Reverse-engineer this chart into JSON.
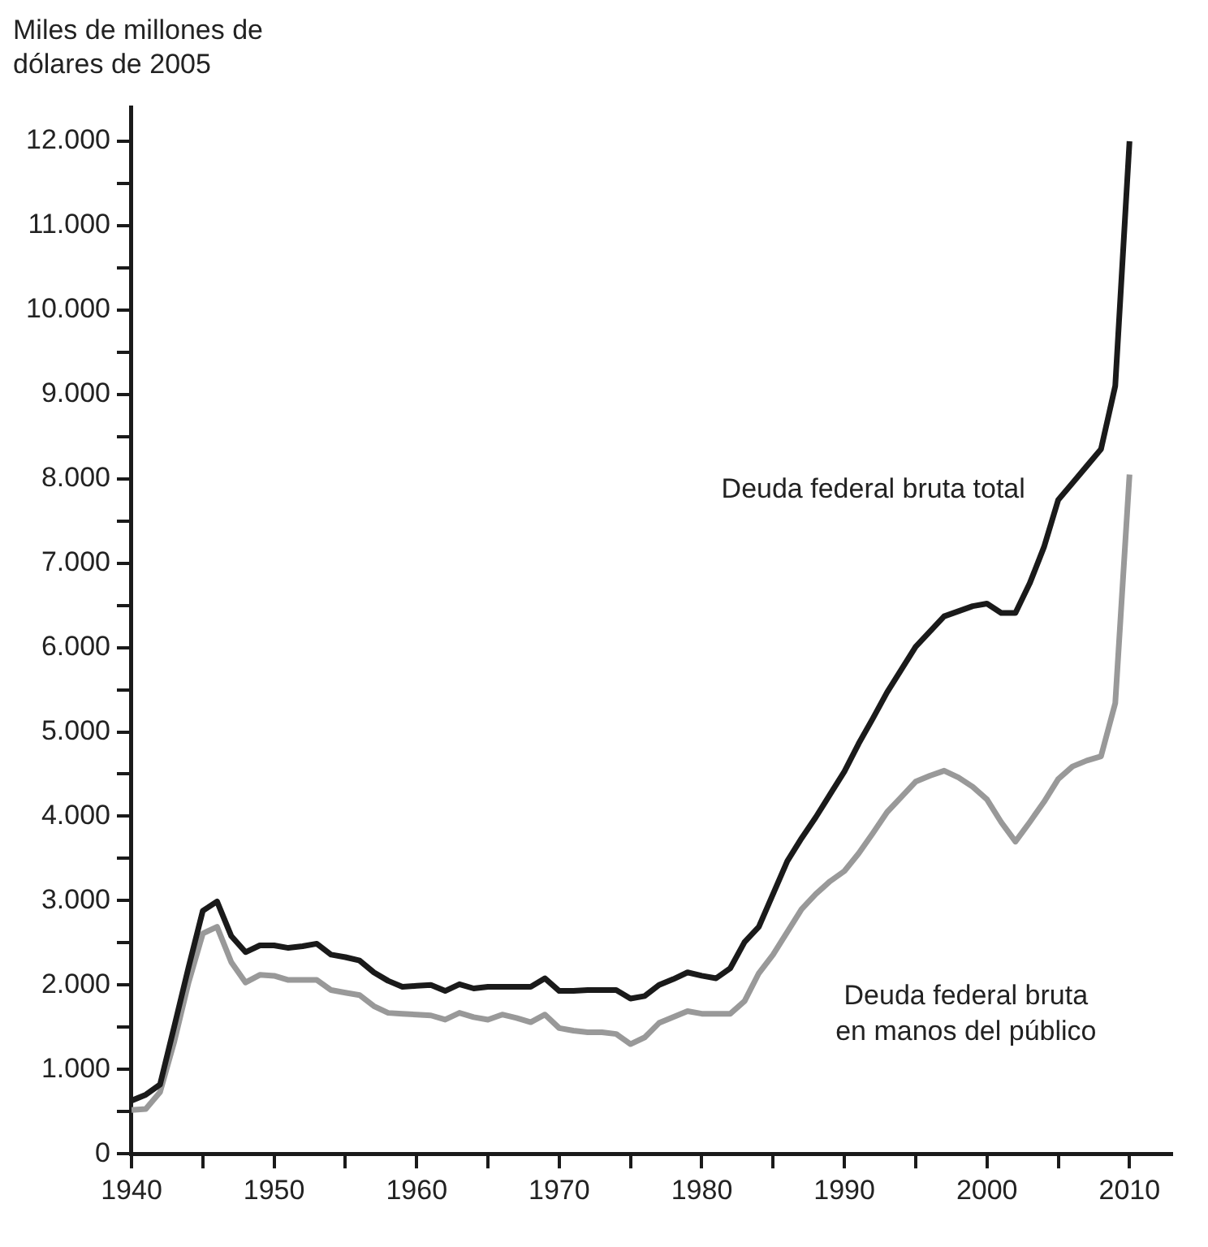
{
  "chart_data": {
    "type": "line",
    "ylabel": "Miles de millones de dólares de 2005",
    "x": [
      1940,
      1941,
      1942,
      1943,
      1944,
      1945,
      1946,
      1947,
      1948,
      1949,
      1950,
      1951,
      1952,
      1953,
      1954,
      1955,
      1956,
      1957,
      1958,
      1959,
      1960,
      1961,
      1962,
      1963,
      1964,
      1965,
      1966,
      1967,
      1968,
      1969,
      1970,
      1971,
      1972,
      1973,
      1974,
      1975,
      1976,
      1977,
      1978,
      1979,
      1980,
      1981,
      1982,
      1983,
      1984,
      1985,
      1986,
      1987,
      1988,
      1989,
      1990,
      1991,
      1992,
      1993,
      1994,
      1995,
      1996,
      1997,
      1998,
      1999,
      2000,
      2001,
      2002,
      2003,
      2004,
      2005,
      2006,
      2007,
      2008,
      2009,
      2010
    ],
    "series": [
      {
        "name": "Deuda federal bruta total",
        "color": "#1a1a1a",
        "values": [
          630,
          700,
          820,
          1510,
          2210,
          2880,
          2990,
          2580,
          2390,
          2470,
          2470,
          2440,
          2460,
          2490,
          2360,
          2330,
          2290,
          2150,
          2050,
          1980,
          1990,
          2000,
          1930,
          2010,
          1960,
          1980,
          1980,
          1980,
          1980,
          2080,
          1930,
          1930,
          1940,
          1940,
          1940,
          1840,
          1870,
          2000,
          2070,
          2150,
          2110,
          2080,
          2200,
          2510,
          2690,
          3080,
          3470,
          3740,
          3990,
          4260,
          4530,
          4860,
          5160,
          5470,
          5740,
          6010,
          6190,
          6370,
          6430,
          6490,
          6520,
          6410,
          6410,
          6760,
          7190,
          7750,
          7950,
          8150,
          8350,
          9100,
          12000
        ]
      },
      {
        "name": "Deuda federal bruta\nen manos del público",
        "color": "#999999",
        "values": [
          520,
          530,
          730,
          1330,
          2030,
          2610,
          2690,
          2270,
          2030,
          2120,
          2110,
          2060,
          2060,
          2060,
          1940,
          1910,
          1880,
          1750,
          1670,
          1660,
          1650,
          1640,
          1590,
          1670,
          1620,
          1590,
          1650,
          1610,
          1560,
          1650,
          1490,
          1460,
          1440,
          1440,
          1420,
          1300,
          1380,
          1550,
          1620,
          1690,
          1660,
          1660,
          1660,
          1810,
          2140,
          2360,
          2630,
          2900,
          3080,
          3230,
          3350,
          3560,
          3800,
          4050,
          4230,
          4410,
          4480,
          4540,
          4460,
          4350,
          4200,
          3930,
          3700,
          3930,
          4170,
          4440,
          4590,
          4660,
          4710,
          5340,
          8050
        ]
      }
    ],
    "xlim": [
      1940,
      2013
    ],
    "xticks": [
      1940,
      {
        "value": 1945,
        "label": null
      },
      1950,
      {
        "value": 1955,
        "label": null
      },
      1960,
      {
        "value": 1965,
        "label": null
      },
      1970,
      {
        "value": 1975,
        "label": null
      },
      1980,
      {
        "value": 1985,
        "label": null
      },
      1990,
      {
        "value": 1995,
        "label": null
      },
      2000,
      {
        "value": 2005,
        "label": null
      },
      2010
    ],
    "ylim": [
      0,
      12400
    ],
    "yticks": [
      0,
      {
        "value": 500,
        "label": null
      },
      {
        "value": 1000,
        "label": "1.000"
      },
      {
        "value": 1500,
        "label": null
      },
      {
        "value": 2000,
        "label": "2.000"
      },
      {
        "value": 2500,
        "label": null
      },
      {
        "value": 3000,
        "label": "3.000"
      },
      {
        "value": 3500,
        "label": null
      },
      {
        "value": 4000,
        "label": "4.000"
      },
      {
        "value": 4500,
        "label": null
      },
      {
        "value": 5000,
        "label": "5.000"
      },
      {
        "value": 5500,
        "label": null
      },
      {
        "value": 6000,
        "label": "6.000"
      },
      {
        "value": 6500,
        "label": null
      },
      {
        "value": 7000,
        "label": "7.000"
      },
      {
        "value": 7500,
        "label": null
      },
      {
        "value": 8000,
        "label": "8.000"
      },
      {
        "value": 8500,
        "label": null
      },
      {
        "value": 9000,
        "label": "9.000"
      },
      {
        "value": 9500,
        "label": null
      },
      {
        "value": 10000,
        "label": "10.000"
      },
      {
        "value": 10500,
        "label": null
      },
      {
        "value": 11000,
        "label": "11.000"
      },
      {
        "value": 11500,
        "label": null
      },
      {
        "value": 12000,
        "label": "12.000"
      }
    ],
    "grid": false,
    "legend": false,
    "marker": "none",
    "line_style": "solid"
  }
}
